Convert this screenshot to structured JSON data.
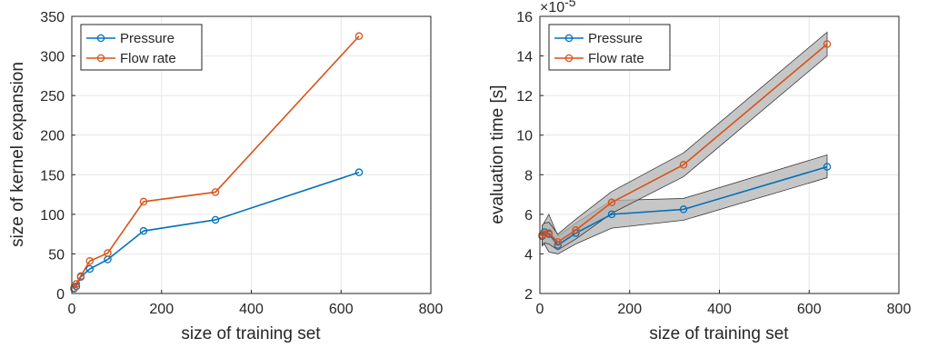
{
  "colors": {
    "series_1": "#0072BD",
    "series_2": "#D95319",
    "band_fill": "#b3b3b3",
    "grid": "#e6e6e6",
    "axes": "#262626"
  },
  "chart_data": [
    {
      "type": "line",
      "xlabel": "size of training set",
      "ylabel": "size of kernel expansion",
      "xlim": [
        0,
        800
      ],
      "ylim": [
        0,
        350
      ],
      "xticks": [
        0,
        200,
        400,
        600,
        800
      ],
      "yticks": [
        0,
        50,
        100,
        150,
        200,
        250,
        300,
        350
      ],
      "grid": true,
      "legend_position": "top-left",
      "series": [
        {
          "name": "Pressure",
          "color": "#0072BD",
          "marker": "circle",
          "x": [
            5,
            10,
            20,
            40,
            80,
            160,
            320,
            640
          ],
          "y": [
            6,
            9,
            21,
            31,
            43,
            79,
            93,
            153
          ]
        },
        {
          "name": "Flow rate",
          "color": "#D95319",
          "marker": "circle",
          "x": [
            5,
            10,
            20,
            40,
            80,
            160,
            320,
            640
          ],
          "y": [
            7,
            12,
            22,
            41,
            51,
            116,
            128,
            325
          ]
        }
      ]
    },
    {
      "type": "line",
      "xlabel": "size of training set",
      "ylabel": "evaluation time [s]",
      "y_scale_label": "×10",
      "y_scale_exponent": "-5",
      "xlim": [
        0,
        800
      ],
      "ylim": [
        2,
        16
      ],
      "xticks": [
        0,
        200,
        400,
        600,
        800
      ],
      "yticks": [
        2,
        4,
        6,
        8,
        10,
        12,
        14,
        16
      ],
      "grid": true,
      "legend_position": "top-left",
      "shaded_band": true,
      "series": [
        {
          "name": "Pressure",
          "color": "#0072BD",
          "marker": "circle",
          "x": [
            5,
            10,
            20,
            40,
            80,
            160,
            320,
            640
          ],
          "y": [
            4.9,
            5.1,
            5.0,
            4.45,
            5.05,
            6.0,
            6.25,
            8.4
          ],
          "band_lower": [
            4.4,
            4.5,
            4.1,
            4.0,
            4.5,
            5.3,
            5.7,
            7.85
          ],
          "band_upper": [
            5.4,
            5.6,
            6.0,
            4.9,
            5.55,
            6.7,
            6.8,
            9.0
          ]
        },
        {
          "name": "Flow rate",
          "color": "#D95319",
          "marker": "circle",
          "x": [
            5,
            10,
            20,
            40,
            80,
            160,
            320,
            640
          ],
          "y": [
            4.95,
            5.0,
            5.05,
            4.6,
            5.2,
            6.6,
            8.5,
            14.6
          ],
          "band_lower": [
            4.5,
            4.55,
            4.5,
            4.2,
            4.75,
            6.05,
            7.9,
            14.0
          ],
          "band_upper": [
            5.45,
            5.55,
            5.6,
            5.0,
            5.75,
            7.15,
            9.1,
            15.2
          ]
        }
      ]
    }
  ]
}
